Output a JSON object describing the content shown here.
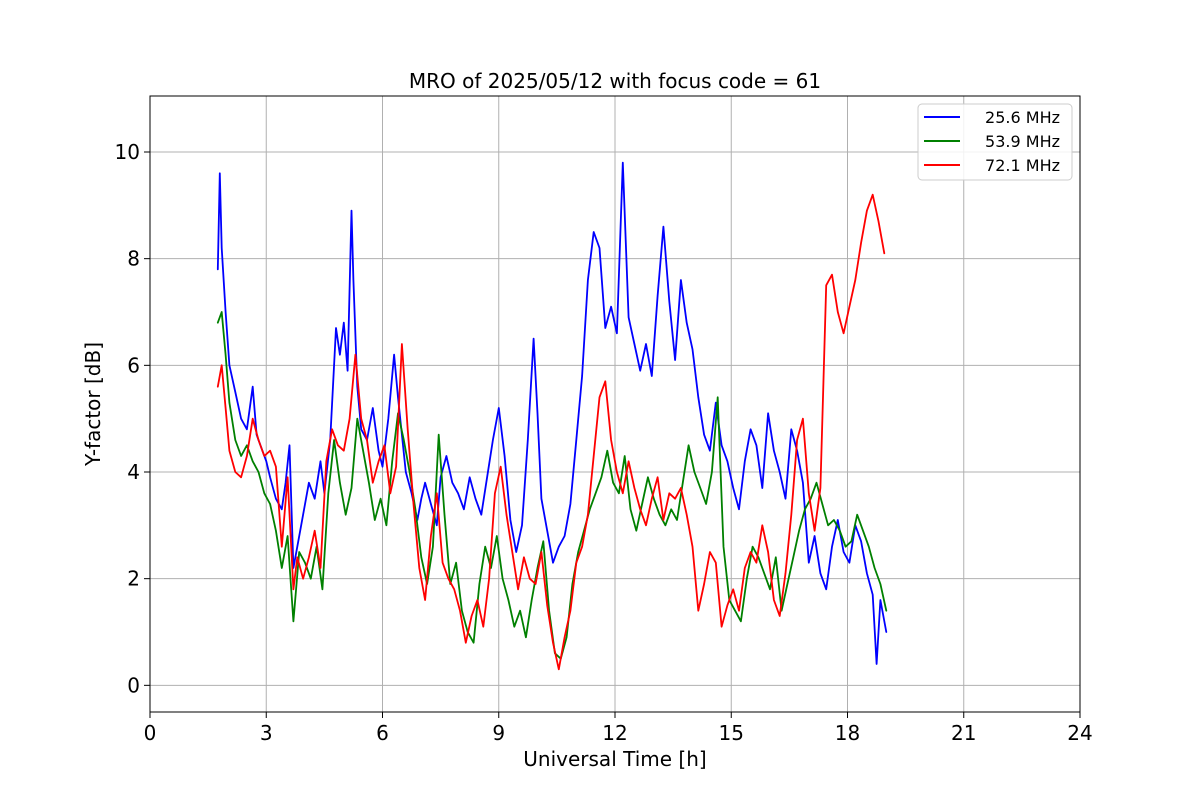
{
  "chart_data": {
    "type": "line",
    "title": "MRO of 2025/05/12 with focus code = 61",
    "xlabel": "Universal Time [h]",
    "ylabel": "Y-factor [dB]",
    "xlim": [
      0,
      24
    ],
    "ylim": [
      -0.5,
      11.05
    ],
    "xticks": [
      0,
      3,
      6,
      9,
      12,
      15,
      18,
      21,
      24
    ],
    "yticks": [
      0,
      2,
      4,
      6,
      8,
      10
    ],
    "grid": true,
    "legend_position": "top-right",
    "series": [
      {
        "name": "25.6 MHz",
        "color": "#0000ff",
        "x": [
          1.75,
          1.8,
          1.85,
          1.95,
          2.05,
          2.2,
          2.35,
          2.5,
          2.65,
          2.75,
          2.9,
          3.0,
          3.1,
          3.25,
          3.4,
          3.5,
          3.6,
          3.7,
          3.8,
          3.95,
          4.1,
          4.25,
          4.4,
          4.5,
          4.65,
          4.8,
          4.9,
          5.0,
          5.1,
          5.2,
          5.25,
          5.35,
          5.45,
          5.6,
          5.75,
          5.9,
          6.0,
          6.15,
          6.3,
          6.4,
          6.5,
          6.6,
          6.75,
          6.9,
          7.0,
          7.1,
          7.25,
          7.4,
          7.5,
          7.65,
          7.8,
          7.95,
          8.1,
          8.25,
          8.4,
          8.55,
          8.7,
          8.85,
          9.0,
          9.15,
          9.3,
          9.45,
          9.6,
          9.75,
          9.9,
          10.0,
          10.1,
          10.25,
          10.4,
          10.55,
          10.7,
          10.85,
          11.0,
          11.15,
          11.3,
          11.45,
          11.6,
          11.75,
          11.9,
          12.05,
          12.2,
          12.35,
          12.5,
          12.65,
          12.8,
          12.95,
          13.1,
          13.25,
          13.4,
          13.55,
          13.7,
          13.85,
          14.0,
          14.15,
          14.3,
          14.45,
          14.6,
          14.75,
          14.9,
          15.05,
          15.2,
          15.35,
          15.5,
          15.65,
          15.8,
          15.95,
          16.1,
          16.25,
          16.4,
          16.55,
          16.7,
          16.85,
          17.0,
          17.15,
          17.3,
          17.45,
          17.6,
          17.75,
          17.9,
          18.05,
          18.2,
          18.35,
          18.5,
          18.65,
          18.75,
          18.85,
          19.0
        ],
        "y": [
          7.8,
          9.6,
          8.2,
          7.0,
          6.0,
          5.5,
          5.0,
          4.8,
          5.6,
          4.7,
          4.4,
          4.2,
          3.9,
          3.5,
          3.3,
          3.8,
          4.5,
          2.2,
          2.6,
          3.2,
          3.8,
          3.5,
          4.2,
          3.6,
          4.6,
          6.7,
          6.2,
          6.8,
          5.9,
          8.9,
          7.6,
          5.6,
          4.8,
          4.6,
          5.2,
          4.4,
          4.1,
          5.0,
          6.2,
          5.4,
          4.7,
          4.0,
          3.6,
          3.1,
          3.5,
          3.8,
          3.4,
          3.0,
          3.9,
          4.3,
          3.8,
          3.6,
          3.3,
          3.9,
          3.5,
          3.2,
          3.9,
          4.6,
          5.2,
          4.3,
          3.1,
          2.5,
          3.0,
          4.6,
          6.5,
          5.1,
          3.5,
          2.9,
          2.3,
          2.6,
          2.8,
          3.4,
          4.6,
          5.8,
          7.6,
          8.5,
          8.2,
          6.7,
          7.1,
          6.6,
          9.8,
          6.9,
          6.4,
          5.9,
          6.4,
          5.8,
          7.3,
          8.6,
          7.2,
          6.1,
          7.6,
          6.8,
          6.3,
          5.4,
          4.7,
          4.4,
          5.3,
          4.5,
          4.2,
          3.7,
          3.3,
          4.2,
          4.8,
          4.5,
          3.7,
          5.1,
          4.4,
          4.0,
          3.5,
          4.8,
          4.4,
          3.8,
          2.3,
          2.8,
          2.1,
          1.8,
          2.6,
          3.1,
          2.5,
          2.3,
          3.0,
          2.7,
          2.1,
          1.7,
          0.4,
          1.6,
          1.0
        ]
      },
      {
        "name": "53.9 MHz",
        "color": "#008000",
        "x": [
          1.75,
          1.85,
          1.95,
          2.05,
          2.2,
          2.35,
          2.5,
          2.65,
          2.8,
          2.95,
          3.1,
          3.25,
          3.4,
          3.55,
          3.7,
          3.85,
          4.0,
          4.15,
          4.3,
          4.45,
          4.6,
          4.75,
          4.9,
          5.05,
          5.2,
          5.35,
          5.5,
          5.65,
          5.8,
          5.95,
          6.1,
          6.25,
          6.4,
          6.55,
          6.7,
          6.85,
          7.0,
          7.15,
          7.3,
          7.45,
          7.6,
          7.75,
          7.9,
          8.05,
          8.2,
          8.35,
          8.5,
          8.65,
          8.8,
          8.95,
          9.1,
          9.25,
          9.4,
          9.55,
          9.7,
          9.85,
          10.0,
          10.15,
          10.3,
          10.45,
          10.6,
          10.75,
          10.9,
          11.05,
          11.2,
          11.35,
          11.5,
          11.65,
          11.8,
          11.95,
          12.1,
          12.25,
          12.4,
          12.55,
          12.7,
          12.85,
          13.0,
          13.15,
          13.3,
          13.45,
          13.6,
          13.75,
          13.9,
          14.05,
          14.2,
          14.35,
          14.5,
          14.65,
          14.8,
          14.95,
          15.1,
          15.25,
          15.4,
          15.55,
          15.7,
          15.85,
          16.0,
          16.15,
          16.3,
          16.45,
          16.6,
          16.75,
          16.9,
          17.05,
          17.2,
          17.35,
          17.5,
          17.65,
          17.8,
          17.95,
          18.1,
          18.25,
          18.4,
          18.55,
          18.7,
          18.85,
          19.0
        ],
        "y": [
          6.8,
          7.0,
          6.2,
          5.3,
          4.6,
          4.3,
          4.5,
          4.2,
          4.0,
          3.6,
          3.4,
          2.9,
          2.2,
          2.8,
          1.2,
          2.5,
          2.3,
          2.0,
          2.6,
          1.8,
          3.6,
          4.6,
          3.8,
          3.2,
          3.7,
          5.0,
          4.4,
          3.8,
          3.1,
          3.5,
          3.0,
          4.2,
          5.1,
          4.6,
          4.0,
          3.3,
          2.4,
          1.9,
          2.6,
          4.7,
          3.2,
          1.9,
          2.3,
          1.4,
          1.0,
          0.8,
          1.9,
          2.6,
          2.2,
          2.8,
          2.0,
          1.6,
          1.1,
          1.4,
          0.9,
          1.6,
          2.2,
          2.7,
          1.4,
          0.6,
          0.5,
          0.9,
          1.9,
          2.5,
          2.9,
          3.3,
          3.6,
          3.9,
          4.4,
          3.8,
          3.6,
          4.3,
          3.3,
          2.9,
          3.4,
          3.9,
          3.5,
          3.2,
          3.0,
          3.3,
          3.1,
          3.8,
          4.5,
          4.0,
          3.7,
          3.4,
          4.0,
          5.4,
          2.6,
          1.6,
          1.4,
          1.2,
          2.0,
          2.6,
          2.4,
          2.1,
          1.8,
          2.4,
          1.4,
          1.9,
          2.4,
          2.9,
          3.3,
          3.5,
          3.8,
          3.4,
          3.0,
          3.1,
          2.9,
          2.6,
          2.7,
          3.2,
          2.9,
          2.6,
          2.2,
          1.9,
          1.4
        ]
      },
      {
        "name": "72.1 MHz",
        "color": "#ff0000",
        "x": [
          1.75,
          1.85,
          1.95,
          2.05,
          2.2,
          2.35,
          2.5,
          2.65,
          2.8,
          2.95,
          3.1,
          3.25,
          3.4,
          3.55,
          3.7,
          3.8,
          3.95,
          4.1,
          4.25,
          4.4,
          4.55,
          4.7,
          4.85,
          5.0,
          5.15,
          5.3,
          5.45,
          5.6,
          5.75,
          5.9,
          6.05,
          6.2,
          6.35,
          6.5,
          6.65,
          6.8,
          6.95,
          7.1,
          7.25,
          7.4,
          7.55,
          7.7,
          7.85,
          8.0,
          8.15,
          8.3,
          8.45,
          8.6,
          8.75,
          8.9,
          9.05,
          9.2,
          9.35,
          9.5,
          9.65,
          9.8,
          9.95,
          10.1,
          10.25,
          10.4,
          10.55,
          10.7,
          10.85,
          11.0,
          11.15,
          11.3,
          11.45,
          11.6,
          11.75,
          11.9,
          12.05,
          12.2,
          12.35,
          12.5,
          12.65,
          12.8,
          12.95,
          13.1,
          13.25,
          13.4,
          13.55,
          13.7,
          13.85,
          14.0,
          14.15,
          14.3,
          14.45,
          14.6,
          14.75,
          14.9,
          15.05,
          15.2,
          15.35,
          15.5,
          15.65,
          15.8,
          15.95,
          16.1,
          16.25,
          16.4,
          16.55,
          16.7,
          16.85,
          17.0,
          17.15,
          17.3,
          17.45,
          17.6,
          17.75,
          17.9,
          18.05,
          18.2,
          18.35,
          18.5,
          18.65,
          18.8,
          18.95
        ],
        "y": [
          5.6,
          6.0,
          5.2,
          4.4,
          4.0,
          3.9,
          4.3,
          5.0,
          4.6,
          4.3,
          4.4,
          4.1,
          2.6,
          3.9,
          1.8,
          2.4,
          2.0,
          2.4,
          2.9,
          2.2,
          4.2,
          4.8,
          4.5,
          4.4,
          5.0,
          6.2,
          5.0,
          4.6,
          3.8,
          4.2,
          4.5,
          3.6,
          4.1,
          6.4,
          4.8,
          3.4,
          2.2,
          1.6,
          2.8,
          3.6,
          2.3,
          2.0,
          1.8,
          1.4,
          0.8,
          1.3,
          1.6,
          1.1,
          2.0,
          3.6,
          4.1,
          3.2,
          2.5,
          1.8,
          2.4,
          2.0,
          1.9,
          2.5,
          1.5,
          0.8,
          0.3,
          0.9,
          1.4,
          2.3,
          2.6,
          3.2,
          4.3,
          5.4,
          5.7,
          4.6,
          4.0,
          3.6,
          4.2,
          3.7,
          3.3,
          3.0,
          3.5,
          3.9,
          3.1,
          3.6,
          3.5,
          3.7,
          3.2,
          2.6,
          1.4,
          1.9,
          2.5,
          2.3,
          1.1,
          1.5,
          1.8,
          1.4,
          2.2,
          2.5,
          2.3,
          3.0,
          2.5,
          1.6,
          1.3,
          2.1,
          3.2,
          4.6,
          5.0,
          3.6,
          2.9,
          3.7,
          7.5,
          7.7,
          7.0,
          6.6,
          7.1,
          7.6,
          8.3,
          8.9,
          9.2,
          8.7,
          8.1
        ]
      }
    ]
  }
}
